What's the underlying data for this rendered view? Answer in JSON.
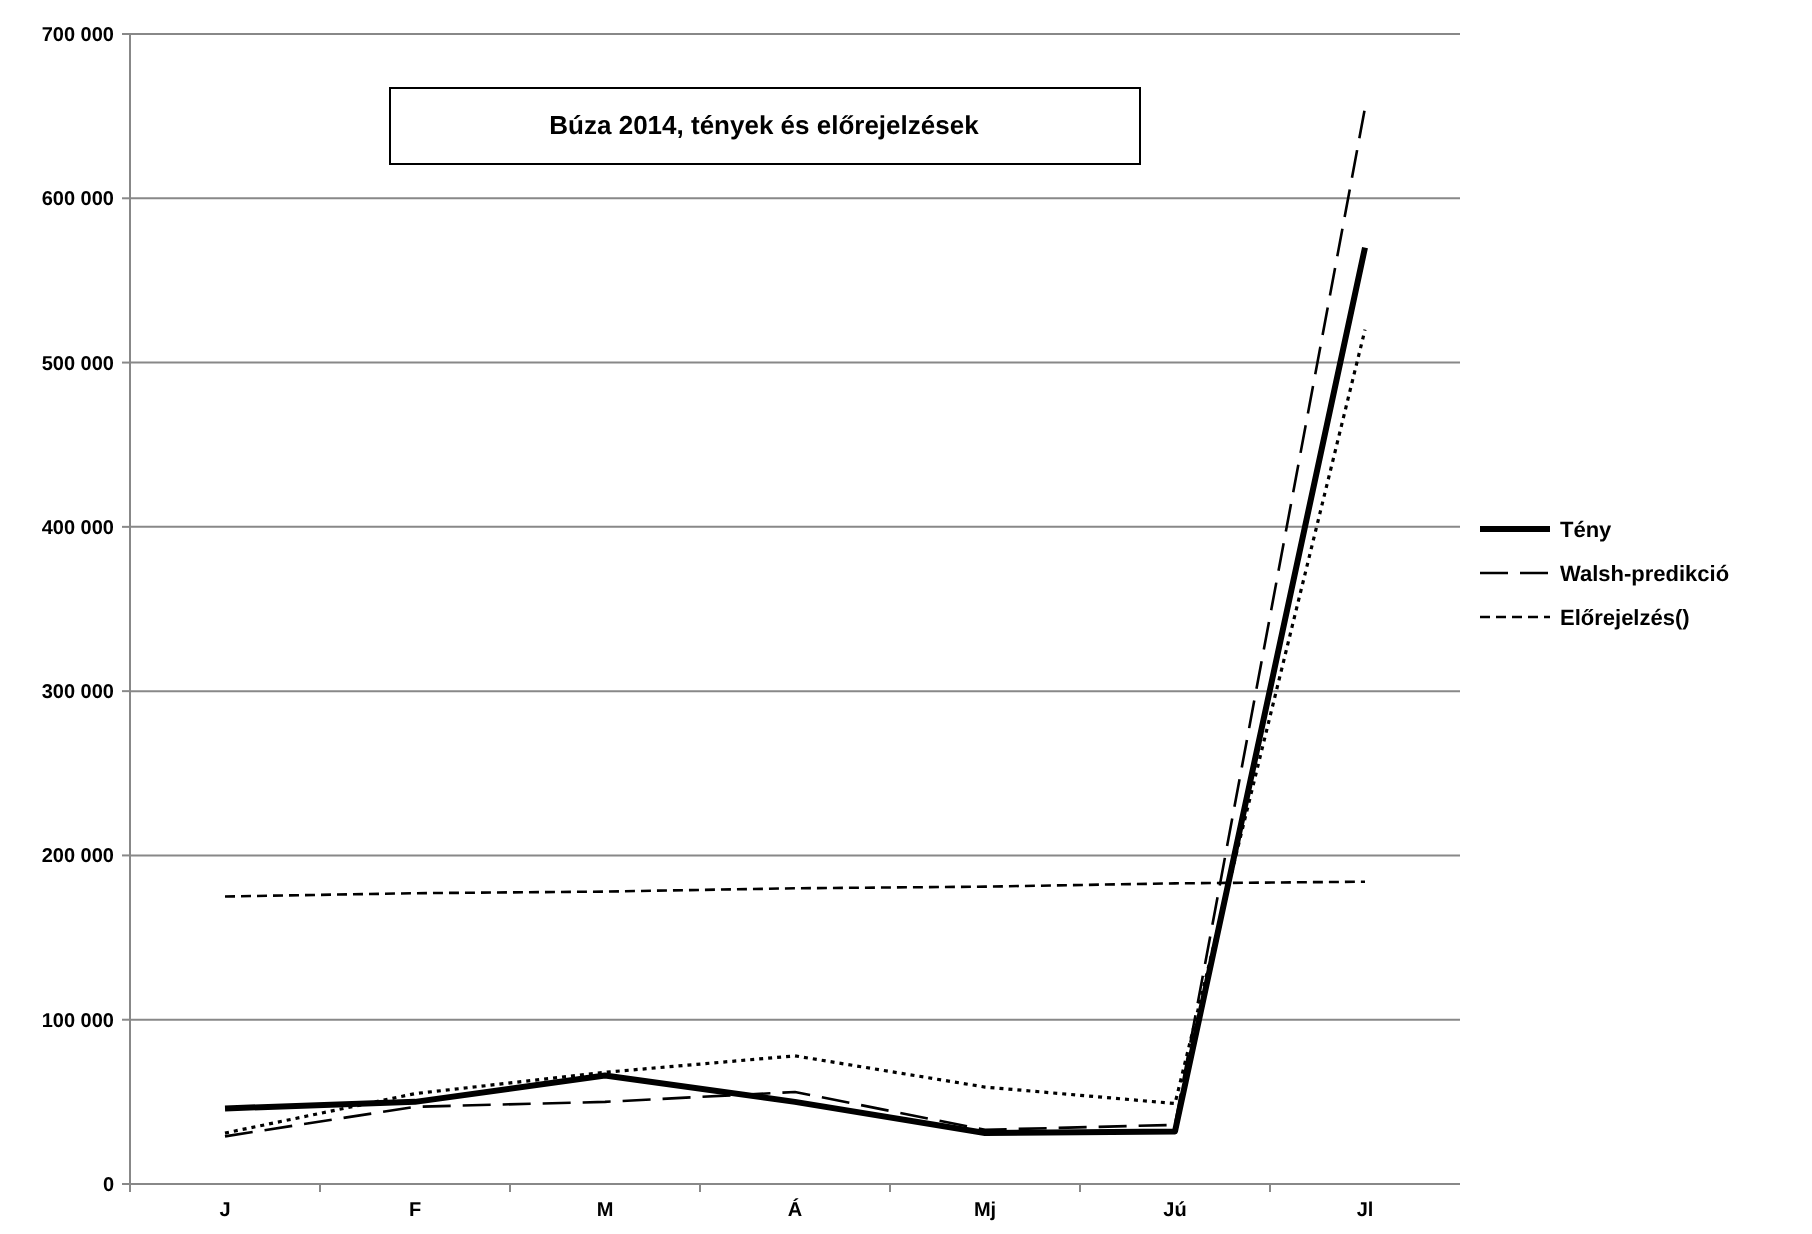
{
  "chart_data": {
    "type": "line",
    "title": "Búza 2014, tények és előrejelzések",
    "categories": [
      "J",
      "F",
      "M",
      "Á",
      "Mj",
      "Jú",
      "Jl"
    ],
    "series": [
      {
        "name": "Tény",
        "color": "#000000",
        "line_style": "solid",
        "values": [
          46000,
          50000,
          66000,
          50000,
          31000,
          32000,
          570000
        ]
      },
      {
        "name": "Walsh-predikció",
        "color": "#000000",
        "line_style": "longdash",
        "values": [
          29000,
          47000,
          50000,
          56000,
          33000,
          36000,
          655000
        ]
      },
      {
        "color": "#000000",
        "line_style": "dotted",
        "values": [
          31000,
          55000,
          68000,
          78000,
          59000,
          49000,
          520000
        ]
      },
      {
        "name": "Előrejelzés()",
        "color": "#000000",
        "line_style": "dashed",
        "values": [
          175000,
          177000,
          178000,
          180000,
          181000,
          183000,
          184000
        ]
      }
    ],
    "ylim": [
      0,
      700000
    ],
    "yticks": [
      {
        "value": 0,
        "label": "0"
      },
      {
        "value": 100000,
        "label": "100 000"
      },
      {
        "value": 200000,
        "label": "200 000"
      },
      {
        "value": 300000,
        "label": "300 000"
      },
      {
        "value": 400000,
        "label": "400 000"
      },
      {
        "value": 500000,
        "label": "500 000"
      },
      {
        "value": 600000,
        "label": "600 000"
      },
      {
        "value": 700000,
        "label": "700 000"
      }
    ],
    "grid": "y",
    "legend": "right"
  }
}
